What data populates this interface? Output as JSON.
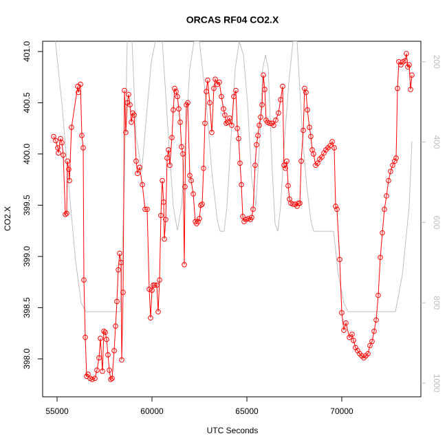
{
  "chart_data": {
    "type": "line",
    "title": "ORCAS RF04 CO2.X",
    "xlabel": "UTC Seconds",
    "ylabel": "CO2.X",
    "xlim": [
      54239,
      74167
    ],
    "xticks": [
      55000,
      60000,
      65000,
      70000
    ],
    "ylim": [
      397.63,
      401.1
    ],
    "yticks": [
      {
        "value": 398,
        "label": "398.0"
      },
      {
        "value": 398.5,
        "label": "398.5"
      },
      {
        "value": 399,
        "label": "399.0"
      },
      {
        "value": 399.5,
        "label": "399.5"
      },
      {
        "value": 400,
        "label": "400.0"
      },
      {
        "value": 400.5,
        "label": "400.5"
      },
      {
        "value": 401,
        "label": "401.0"
      }
    ],
    "y2lim": [
      1034,
      149
    ],
    "y2ticks": [
      200,
      400,
      600,
      800,
      1000
    ],
    "series": [
      {
        "color": "#ff0000",
        "markers": true,
        "x": [
          54819,
          54928,
          55036,
          55072,
          55181,
          55254,
          55326,
          55435,
          55507,
          55543,
          55616,
          55652,
          55761,
          56087,
          56123,
          56232,
          56304,
          56377,
          56413,
          56486,
          56558,
          56630,
          56739,
          56848,
          56993,
          57101,
          57210,
          57283,
          57391,
          57464,
          57536,
          57609,
          57681,
          57754,
          57826,
          57899,
          58007,
          58080,
          58152,
          58225,
          58297,
          58370,
          58406,
          58478,
          58551,
          58623,
          58696,
          58768,
          58841,
          58913,
          58986,
          59058,
          59167,
          59239,
          59348,
          59493,
          59638,
          59746,
          59855,
          59928,
          60000,
          60072,
          60145,
          60254,
          60326,
          60399,
          60471,
          60543,
          60616,
          60652,
          60725,
          60797,
          60870,
          60942,
          61051,
          61123,
          61196,
          61268,
          61341,
          61413,
          61486,
          61558,
          61630,
          61703,
          61739,
          61812,
          61884,
          61993,
          62065,
          62174,
          62283,
          62355,
          62428,
          62500,
          62572,
          62645,
          62717,
          62790,
          62862,
          62935,
          63043,
          63152,
          63261,
          63333,
          63442,
          63551,
          63659,
          63768,
          63841,
          63913,
          63986,
          64094,
          64203,
          64312,
          64420,
          64493,
          64565,
          64638,
          64710,
          64783,
          64855,
          64964,
          65072,
          65181,
          65254,
          65326,
          65435,
          65507,
          65580,
          65652,
          65725,
          65797,
          65870,
          65942,
          66014,
          66087,
          66196,
          66304,
          66413,
          66522,
          66667,
          66775,
          66884,
          66957,
          67029,
          67101,
          67174,
          67246,
          67319,
          67428,
          67536,
          67645,
          67717,
          67790,
          67862,
          67971,
          68043,
          68116,
          68188,
          68297,
          68370,
          68442,
          68514,
          68623,
          68732,
          68841,
          68949,
          69058,
          69167,
          69275,
          69384,
          69493,
          69601,
          69674,
          69746,
          69891,
          70000,
          70109,
          70217,
          70399,
          70543,
          70616,
          70725,
          70833,
          70942,
          71051,
          71159,
          71268,
          71377,
          71486,
          71594,
          71703,
          71812,
          71920,
          72029,
          72138,
          72246,
          72355,
          72464,
          72572,
          72681,
          72790,
          72862,
          72935,
          73007,
          73116,
          73225,
          73333,
          73406,
          73478,
          73551,
          73623,
          73696
        ],
        "values": [
          400.17,
          400.13,
          400.06,
          400.01,
          400.15,
          400.11,
          399.99,
          399.41,
          399.42,
          399.93,
          399.85,
          399.74,
          400.26,
          400.66,
          400.6,
          400.68,
          400.18,
          400.06,
          398.77,
          398.21,
          397.83,
          397.85,
          397.81,
          397.8,
          397.81,
          397.89,
          398.01,
          398.2,
          397.88,
          398.27,
          398.26,
          398.19,
          398.04,
          397.89,
          397.8,
          397.81,
          398.08,
          398.32,
          398.56,
          398.87,
          399.03,
          398.94,
          397.99,
          398.65,
          400.62,
          400.21,
          400.5,
          400.58,
          400.48,
          400.31,
          400.4,
          400.38,
          399.93,
          399.81,
          399.87,
          399.7,
          399.46,
          399.46,
          398.68,
          398.4,
          398.67,
          398.72,
          398.72,
          398.72,
          398.46,
          398.77,
          399.4,
          399.74,
          399.53,
          399.17,
          399.36,
          399.96,
          400.04,
          399.89,
          400.16,
          400.43,
          400.64,
          400.61,
          400.56,
          400.44,
          400.31,
          400.07,
          400,
          398.92,
          399.68,
          400.48,
          400.5,
          399.79,
          399.74,
          399.61,
          399.34,
          399.32,
          399.34,
          399.37,
          399.5,
          399.51,
          399.86,
          400.3,
          400.61,
          400.72,
          400.5,
          400.21,
          400.64,
          400.73,
          400.68,
          400.7,
          400.56,
          400.44,
          400.38,
          400.3,
          400.31,
          400.35,
          400.28,
          400.56,
          400.62,
          400.25,
          400.15,
          399.91,
          399.7,
          399.39,
          399.34,
          399.36,
          399.37,
          399.36,
          399.38,
          399.46,
          399.89,
          400.09,
          400.18,
          400.28,
          400.36,
          400.48,
          400.77,
          400.63,
          400.33,
          400.31,
          400.3,
          400.3,
          400.28,
          400.33,
          400.4,
          400.53,
          400.66,
          399.89,
          399.86,
          399.93,
          399.69,
          399.56,
          399.52,
          399.51,
          399.51,
          399.49,
          399.52,
          399.52,
          399.93,
          400.23,
          400.64,
          400.6,
          400.43,
          400.26,
          400.17,
          400.04,
          400,
          399.89,
          399.91,
          399.95,
          399.97,
          400.01,
          400.04,
          400.06,
          400.08,
          400.12,
          400.06,
          399.49,
          399.46,
          398.97,
          398.45,
          398.28,
          398.35,
          398.21,
          398.24,
          398.18,
          398.11,
          398.08,
          398.05,
          398.03,
          398.01,
          398.03,
          398.05,
          398.13,
          398.17,
          398.27,
          398.38,
          398.62,
          398.99,
          399.23,
          399.46,
          399.59,
          399.74,
          399.83,
          399.89,
          399.93,
          399.96,
          400.64,
          400.9,
          400.87,
          400.9,
          400.91,
          400.98,
          400.85,
          400.87,
          400.63,
          400.77
        ]
      },
      {
        "color": "#bebebe",
        "axis": "y2",
        "markers": false,
        "x": [
          54891,
          55254,
          55616,
          55978,
          56268,
          56522,
          58333,
          58514,
          58696,
          58804,
          58949,
          59167,
          59239,
          59457,
          59674,
          59964,
          60181,
          60399,
          60543,
          60870,
          61123,
          61341,
          61558,
          61775,
          61993,
          62210,
          62500,
          62862,
          63152,
          63442,
          63587,
          63804,
          63949,
          64167,
          64384,
          64601,
          64819,
          65036,
          65254,
          65471,
          65688,
          65833,
          65978,
          66123,
          66341,
          66486,
          66630,
          66775,
          66993,
          67210,
          67428,
          67645,
          67935,
          68152,
          68370,
          68514,
          69565,
          69819,
          70109,
          70326,
          72826,
          73188,
          73551,
          73696
        ],
        "values": [
          140,
          303,
          509,
          697,
          800,
          822,
          822,
          560,
          149,
          115,
          149,
          389,
          406,
          474,
          354,
          200,
          149,
          132,
          149,
          389,
          560,
          620,
          560,
          389,
          217,
          149,
          149,
          303,
          474,
          594,
          622,
          622,
          560,
          389,
          217,
          149,
          183,
          303,
          491,
          560,
          389,
          217,
          183,
          217,
          474,
          603,
          622,
          560,
          389,
          252,
          149,
          149,
          389,
          509,
          594,
          622,
          622,
          731,
          800,
          822,
          822,
          731,
          560,
          398
        ]
      }
    ]
  }
}
